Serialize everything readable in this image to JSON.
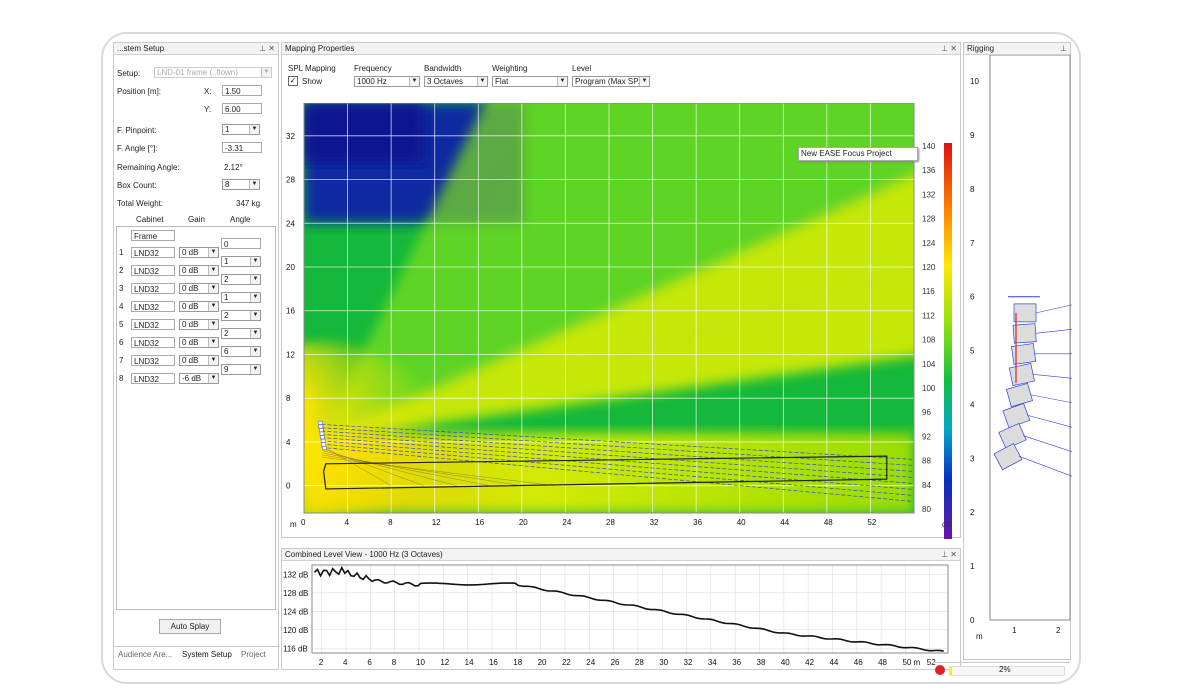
{
  "system_setup": {
    "title": "...stem Setup",
    "setup_label": "Setup:",
    "setup_value": "LND-01 frame (..flown)",
    "position_label": "Position [m]:",
    "x_label": "X:",
    "x_value": "1.50",
    "y_label": "Y:",
    "y_value": "6.00",
    "pinpoint_label": "F. Pinpoint:",
    "pinpoint_value": "1",
    "angle_label": "F. Angle [°]:",
    "angle_value": "-3.31",
    "remaining_angle_label": "Remaining Angle:",
    "remaining_angle_value": "2.12°",
    "box_count_label": "Box Count:",
    "box_count_value": "8",
    "total_weight_label": "Total Weight:",
    "total_weight_value": "347 kg",
    "col_cabinet": "Cabinet",
    "col_gain": "Gain",
    "col_angle": "Angle",
    "frame_label": "Frame",
    "frame_angle": "0",
    "cabinets": [
      {
        "num": "1",
        "name": "LND32",
        "gain": "0 dB",
        "angle": "1"
      },
      {
        "num": "2",
        "name": "LND32",
        "gain": "0 dB",
        "angle": "2"
      },
      {
        "num": "3",
        "name": "LND32",
        "gain": "0 dB",
        "angle": "1"
      },
      {
        "num": "4",
        "name": "LND32",
        "gain": "0 dB",
        "angle": "2"
      },
      {
        "num": "5",
        "name": "LND32",
        "gain": "0 dB",
        "angle": "2"
      },
      {
        "num": "6",
        "name": "LND32",
        "gain": "0 dB",
        "angle": "6"
      },
      {
        "num": "7",
        "name": "LND32",
        "gain": "0 dB",
        "angle": "9"
      },
      {
        "num": "8",
        "name": "LND32",
        "gain": "-6 dB",
        "angle": ""
      }
    ],
    "auto_splay": "Auto Splay",
    "tabs": [
      "Audience Are...",
      "System Setup",
      "Project"
    ]
  },
  "mapping": {
    "title": "Mapping Properties",
    "spl_mapping_label": "SPL Mapping",
    "show_label": "Show",
    "show_checked": "✓",
    "frequency_label": "Frequency",
    "frequency_value": "1000 Hz",
    "bandwidth_label": "Bandwidth",
    "bandwidth_value": "3 Octaves",
    "weighting_label": "Weighting",
    "weighting_value": "Flat",
    "level_label": "Level",
    "level_value": "Program (Max SP...",
    "project_tooltip": "New EASE Focus Project",
    "x_unit": "m",
    "x_ticks": [
      "0",
      "4",
      "8",
      "12",
      "16",
      "20",
      "24",
      "28",
      "32",
      "36",
      "40",
      "44",
      "48",
      "52"
    ],
    "y_ticks": [
      "32",
      "28",
      "24",
      "20",
      "16",
      "12",
      "8",
      "4",
      "0"
    ],
    "colorbar_ticks": [
      "140",
      "136",
      "132",
      "128",
      "124",
      "120",
      "116",
      "112",
      "108",
      "104",
      "100",
      "96",
      "92",
      "88",
      "84",
      "80"
    ],
    "colorbar_unit": "dB"
  },
  "clv": {
    "title": "Combined Level View - 1000 Hz (3 Octaves)",
    "y_ticks": [
      "132 dB",
      "128 dB",
      "124 dB",
      "120 dB",
      "116 dB"
    ],
    "x_ticks": [
      "2",
      "4",
      "6",
      "8",
      "10",
      "12",
      "14",
      "16",
      "18",
      "20",
      "22",
      "24",
      "26",
      "28",
      "30",
      "32",
      "34",
      "36",
      "38",
      "40",
      "42",
      "44",
      "46",
      "48",
      "50 m",
      "52"
    ]
  },
  "side": {
    "title": "Rigging",
    "y_ticks": [
      "10",
      "9",
      "8",
      "7",
      "6",
      "5",
      "4",
      "3",
      "2",
      "1",
      "0"
    ],
    "x_unit": "m",
    "x_ticks": [
      "1",
      "2"
    ],
    "status_percent": "2%"
  }
}
